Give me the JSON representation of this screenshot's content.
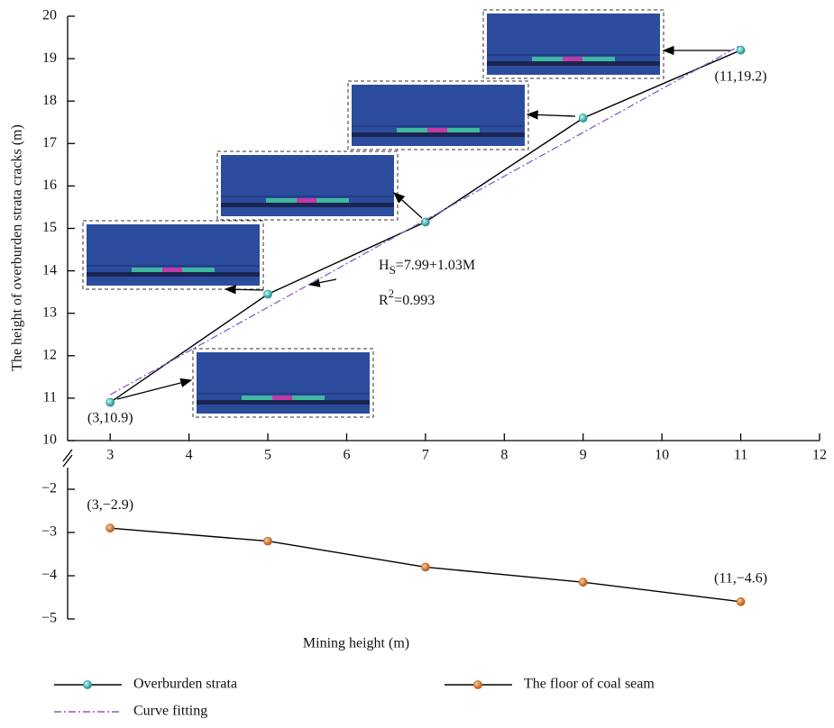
{
  "chart_data": {
    "type": "line",
    "x_label": "Mining height (m)",
    "y_label": "The height of overburden strata cracks (m)",
    "xlim": [
      2.46,
      12
    ],
    "xticks": [
      3,
      4,
      5,
      6,
      7,
      8,
      9,
      10,
      11,
      12
    ],
    "ylim": [
      10,
      20
    ],
    "yticks": [
      10,
      11,
      12,
      13,
      14,
      15,
      16,
      17,
      18,
      19,
      20
    ],
    "y2lim": [
      -5,
      -1.5
    ],
    "y2ticks": [
      {
        "value": -5,
        "label": "−5"
      },
      {
        "value": -4,
        "label": "−4"
      },
      {
        "value": -3,
        "label": "−3"
      },
      {
        "value": -2,
        "label": "−2"
      }
    ],
    "legend": "bottom",
    "series": [
      {
        "name": "Overburden strata",
        "color": "#000000",
        "marker_color": "#2a9d9a",
        "x": [
          3,
          5,
          7,
          9,
          11
        ],
        "values": [
          10.9,
          13.45,
          15.15,
          17.6,
          19.2
        ]
      },
      {
        "name": "The floor of coal seam",
        "color": "#000000",
        "marker_color": "#c8641e",
        "axis": "y2",
        "x": [
          3,
          5,
          7,
          9,
          11
        ],
        "values": [
          -2.9,
          -3.2,
          -3.8,
          -4.15,
          -4.6
        ]
      },
      {
        "name": "Curve fitting",
        "color": "#8a5cc8",
        "dashed": true,
        "x": [
          3,
          11
        ],
        "values": [
          11.08,
          19.32
        ]
      }
    ],
    "annotations": [
      {
        "text": "(3,10.9)",
        "x": 3,
        "y": 10.9
      },
      {
        "text": "(11,19.2)",
        "x": 11,
        "y": 19.2
      },
      {
        "text": "(3,−2.9)",
        "x": 3,
        "y": -2.9,
        "axis": "y2"
      },
      {
        "text": "(11,−4.6)",
        "x": 11,
        "y": -4.6,
        "axis": "y2"
      }
    ],
    "equation": {
      "main": "H",
      "sub": "S",
      "rest": "=7.99+1.03M"
    },
    "r_squared": {
      "main": "R",
      "sup": "2",
      "rest": "=0.993"
    }
  }
}
